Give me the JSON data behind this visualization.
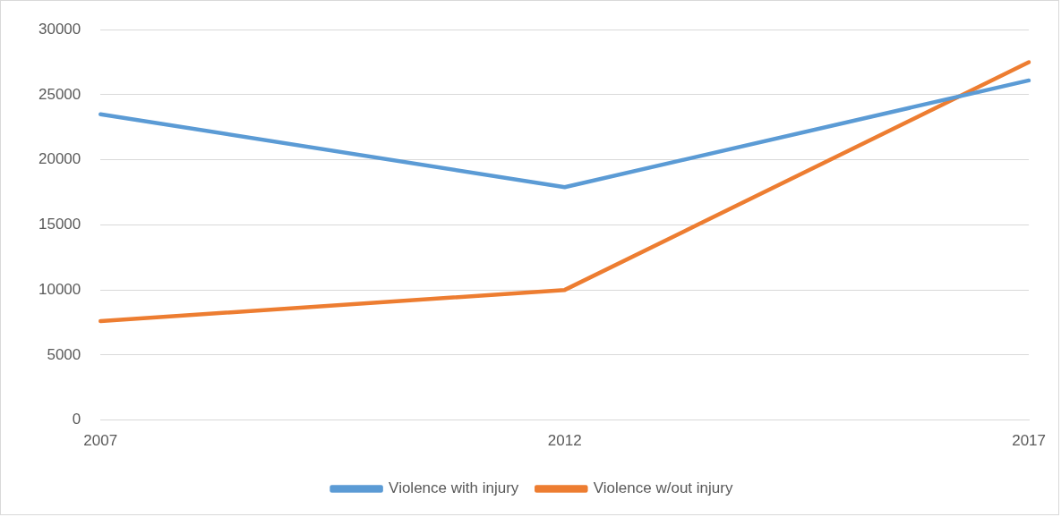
{
  "chart_data": {
    "type": "line",
    "categories": [
      "2007",
      "2012",
      "2017"
    ],
    "series": [
      {
        "name": "Violence with injury",
        "color": "#5b9bd5",
        "values": [
          23500,
          17900,
          26100
        ]
      },
      {
        "name": "Violence w/out injury",
        "color": "#ed7d31",
        "values": [
          7600,
          10000,
          27500
        ]
      }
    ],
    "ylim": [
      0,
      30000
    ],
    "yticks": [
      0,
      5000,
      10000,
      15000,
      20000,
      25000,
      30000
    ],
    "grid": "y",
    "legend": "bottom",
    "marker": "none",
    "line_style": "solid"
  }
}
